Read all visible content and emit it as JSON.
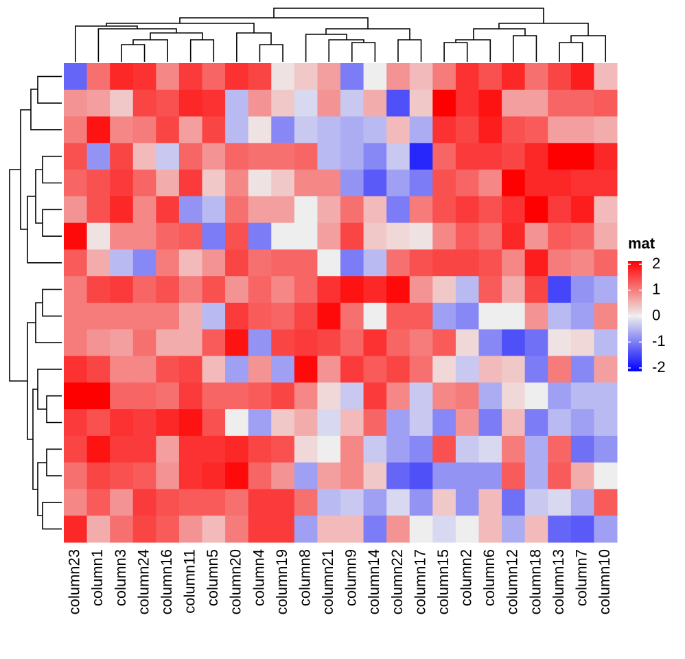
{
  "chart_data": {
    "type": "heatmap",
    "categories": [
      "column23",
      "column1",
      "column3",
      "column24",
      "column16",
      "column11",
      "column5",
      "column20",
      "column4",
      "column19",
      "column8",
      "column21",
      "column9",
      "column14",
      "column22",
      "column17",
      "column15",
      "column2",
      "column6",
      "column12",
      "column18",
      "column13",
      "column7",
      "column10"
    ],
    "values": [
      [
        -1.0,
        0.9,
        1.6,
        1.5,
        0.7,
        1.4,
        1.0,
        1.5,
        1.3,
        0.05,
        0.2,
        0.5,
        -0.8,
        0.0,
        0.6,
        0.3,
        0.8,
        1.5,
        1.2,
        1.6,
        0.9,
        1.3,
        1.7,
        0.3
      ],
      [
        0.6,
        0.5,
        0.2,
        1.3,
        1.2,
        1.6,
        1.5,
        -0.3,
        0.6,
        0.2,
        -0.1,
        0.6,
        -0.2,
        0.4,
        -1.2,
        0.2,
        2.1,
        1.5,
        1.8,
        0.5,
        0.5,
        1.0,
        1.0,
        1.1
      ],
      [
        0.8,
        1.8,
        0.7,
        0.8,
        1.3,
        0.5,
        1.3,
        -0.3,
        0.05,
        -0.7,
        -0.2,
        -0.3,
        -0.4,
        -0.3,
        0.3,
        -0.4,
        1.5,
        1.3,
        1.7,
        1.2,
        1.1,
        0.5,
        0.5,
        0.4
      ],
      [
        1.2,
        -0.6,
        1.3,
        0.3,
        -0.2,
        1.0,
        0.6,
        1.0,
        0.9,
        0.9,
        1.0,
        -0.3,
        -0.4,
        -0.7,
        -0.2,
        -1.6,
        1.0,
        1.4,
        1.4,
        1.3,
        1.6,
        2.1,
        2.1,
        1.6
      ],
      [
        1.0,
        1.2,
        1.4,
        1.0,
        0.4,
        1.4,
        0.2,
        0.7,
        0.05,
        0.2,
        0.7,
        0.7,
        -0.6,
        -1.1,
        -0.5,
        -0.8,
        1.2,
        1.0,
        0.7,
        2.1,
        1.6,
        1.6,
        1.5,
        1.5
      ],
      [
        0.6,
        1.2,
        1.6,
        0.7,
        1.4,
        -0.6,
        -0.3,
        0.9,
        0.5,
        0.5,
        0.0,
        0.4,
        0.9,
        0.3,
        -0.8,
        0.8,
        1.2,
        1.4,
        1.2,
        1.5,
        2.1,
        1.4,
        1.7,
        0.3
      ],
      [
        1.9,
        0.05,
        0.7,
        0.7,
        1.0,
        1.1,
        -0.8,
        1.2,
        -0.8,
        0.0,
        0.0,
        0.5,
        1.3,
        0.2,
        0.1,
        0.05,
        0.7,
        1.1,
        0.9,
        1.6,
        0.6,
        1.1,
        1.0,
        0.4
      ],
      [
        1.1,
        0.4,
        -0.3,
        -0.7,
        0.8,
        0.3,
        0.6,
        1.3,
        0.9,
        1.0,
        1.0,
        0.0,
        -0.8,
        -0.3,
        0.9,
        1.2,
        1.3,
        1.3,
        1.2,
        0.7,
        1.7,
        0.8,
        0.7,
        1.0
      ],
      [
        0.8,
        1.3,
        1.4,
        1.0,
        1.2,
        0.8,
        1.2,
        0.6,
        1.0,
        0.7,
        1.0,
        1.5,
        1.8,
        1.6,
        1.9,
        0.6,
        0.2,
        -0.3,
        1.1,
        0.4,
        1.3,
        -1.3,
        -0.6,
        -0.4
      ],
      [
        0.8,
        0.8,
        0.8,
        0.8,
        0.8,
        0.4,
        -0.3,
        1.4,
        1.1,
        1.0,
        1.3,
        1.9,
        0.9,
        0.0,
        1.1,
        1.1,
        -0.5,
        -0.7,
        0.0,
        0.0,
        0.6,
        -0.3,
        -0.5,
        0.7
      ],
      [
        0.8,
        0.6,
        0.5,
        0.9,
        0.4,
        0.4,
        1.1,
        1.8,
        -0.6,
        1.3,
        1.4,
        1.3,
        1.0,
        1.5,
        1.0,
        0.8,
        1.1,
        0.1,
        -0.7,
        -1.2,
        -0.9,
        0.05,
        0.1,
        -0.3
      ],
      [
        1.5,
        1.3,
        0.7,
        0.7,
        1.2,
        1.3,
        0.3,
        -0.5,
        0.6,
        -0.5,
        1.9,
        0.6,
        1.4,
        1.1,
        1.3,
        0.9,
        0.1,
        -0.2,
        0.3,
        0.2,
        -0.8,
        0.8,
        -0.7,
        0.5
      ],
      [
        2.0,
        2.2,
        1.0,
        1.0,
        0.9,
        1.4,
        1.0,
        1.0,
        1.1,
        1.3,
        0.7,
        0.1,
        -0.2,
        1.4,
        0.7,
        -0.2,
        0.7,
        0.8,
        -0.4,
        0.1,
        0.0,
        -0.5,
        -0.3,
        -0.3
      ],
      [
        1.4,
        1.2,
        1.5,
        1.4,
        1.6,
        1.8,
        1.2,
        0.0,
        -0.5,
        0.2,
        0.4,
        -0.1,
        0.3,
        1.0,
        -0.5,
        -0.2,
        -0.7,
        0.6,
        -0.8,
        0.3,
        -0.8,
        -0.3,
        -0.5,
        -0.3
      ],
      [
        1.3,
        1.8,
        1.4,
        1.4,
        0.5,
        1.5,
        1.5,
        1.6,
        1.3,
        1.2,
        0.1,
        0.0,
        0.7,
        -0.2,
        -0.5,
        -0.7,
        1.2,
        -0.2,
        -0.1,
        0.8,
        -0.4,
        1.0,
        -0.9,
        -0.6
      ],
      [
        0.9,
        1.3,
        1.2,
        1.1,
        0.6,
        1.5,
        1.6,
        1.9,
        1.0,
        0.6,
        -0.5,
        0.5,
        0.7,
        0.2,
        -1.0,
        -1.2,
        -0.6,
        -0.6,
        -0.6,
        1.1,
        -0.4,
        1.1,
        0.4,
        0.0
      ],
      [
        0.7,
        1.1,
        0.6,
        1.4,
        1.2,
        1.1,
        1.1,
        0.9,
        1.4,
        1.4,
        0.9,
        -0.3,
        -0.2,
        -0.5,
        -0.1,
        -0.6,
        0.2,
        -0.6,
        0.3,
        -0.9,
        -0.2,
        -0.1,
        -0.4,
        1.1
      ],
      [
        1.6,
        0.4,
        0.9,
        1.3,
        1.1,
        0.6,
        0.3,
        0.8,
        1.4,
        1.4,
        -0.5,
        0.3,
        0.3,
        -0.8,
        0.6,
        0.0,
        -0.1,
        0.0,
        0.3,
        -0.4,
        0.3,
        -1.0,
        -1.1,
        -0.5
      ]
    ],
    "colors": {
      "low": "#0000ff",
      "mid": "#eeeeee",
      "high": "#ff0000"
    },
    "legend": {
      "title": "mat",
      "ticks": [
        2,
        1,
        0,
        -1,
        -2
      ]
    }
  }
}
